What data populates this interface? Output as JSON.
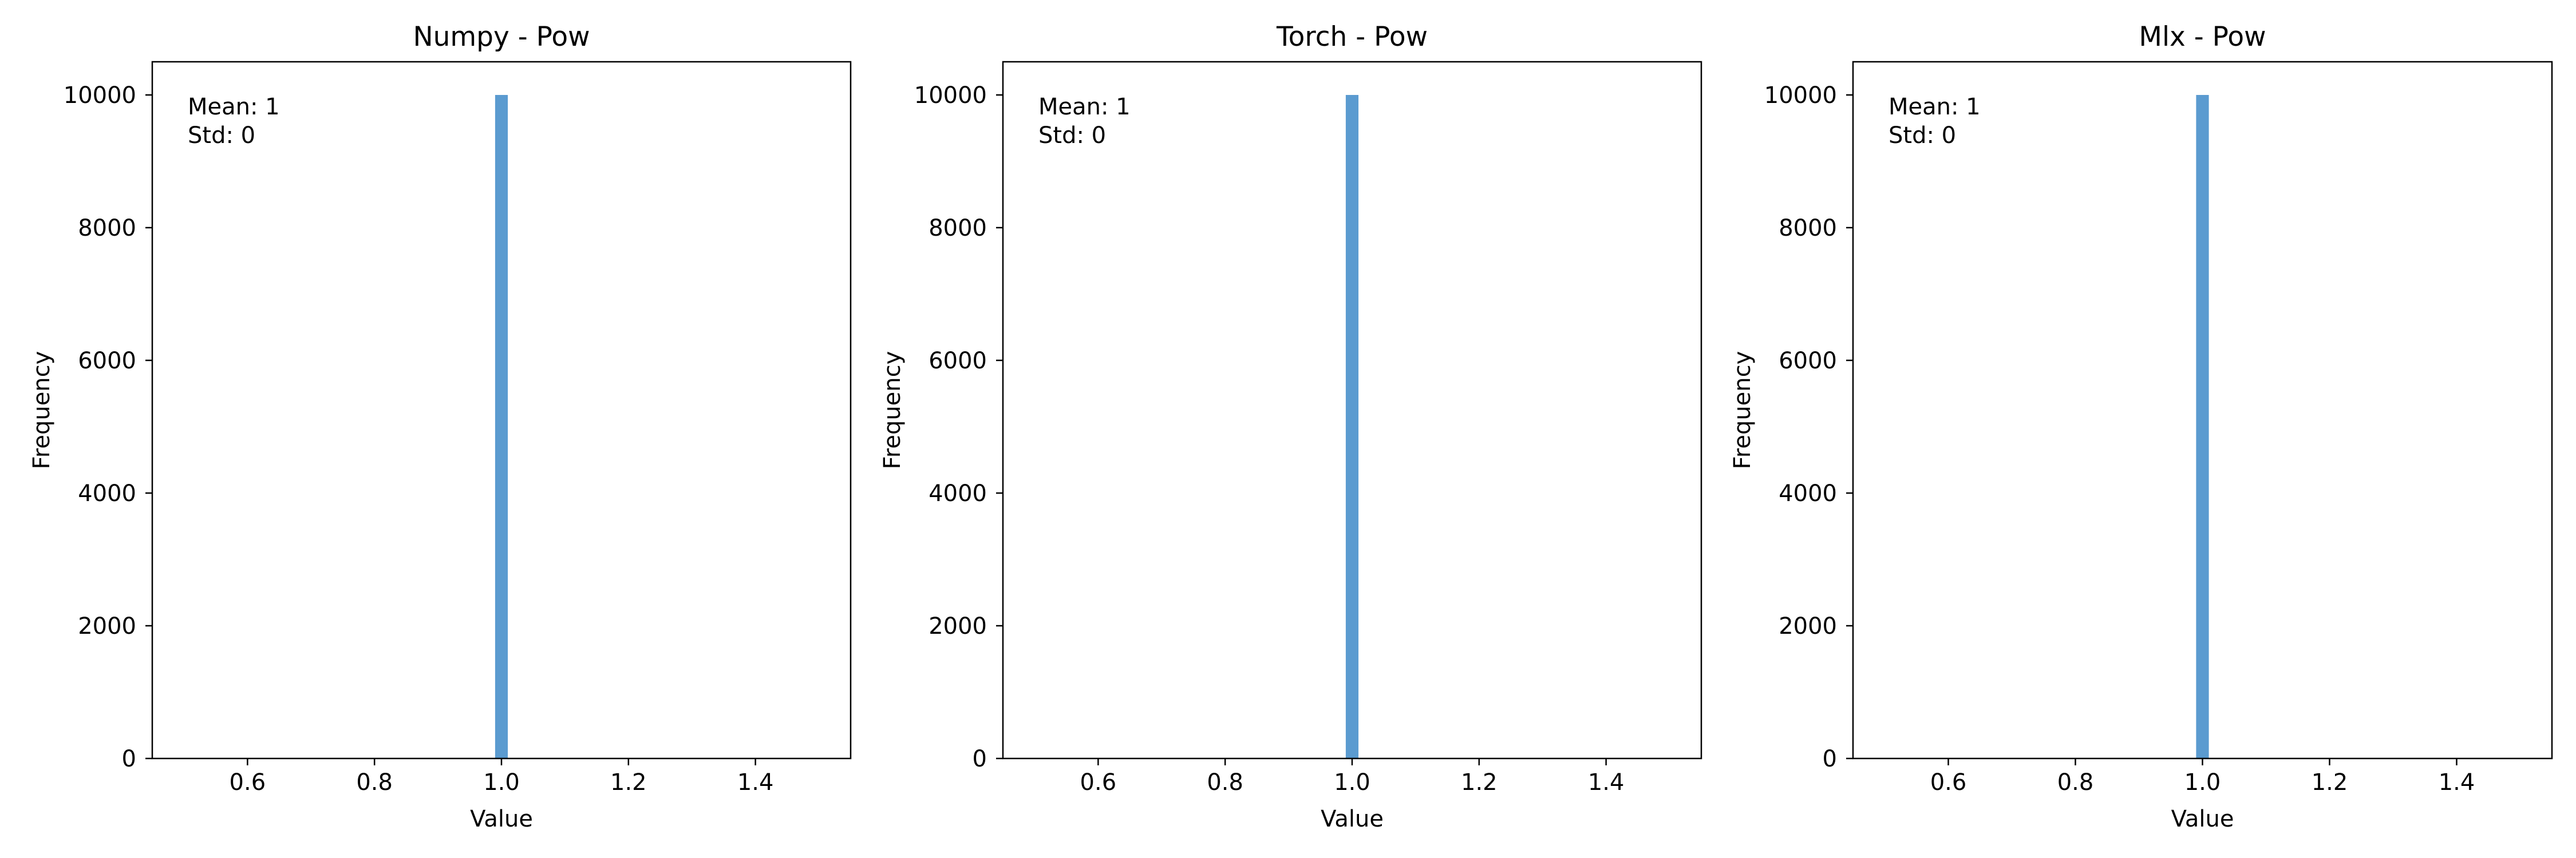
{
  "chart_data": [
    {
      "type": "bar",
      "title": "Numpy - Pow",
      "xlabel": "Value",
      "ylabel": "Frequency",
      "xlim": [
        0.45,
        1.55
      ],
      "ylim": [
        0,
        10500
      ],
      "xticks": [
        "0.6",
        "0.8",
        "1.0",
        "1.2",
        "1.4"
      ],
      "yticks": [
        "0",
        "2000",
        "4000",
        "6000",
        "8000",
        "10000"
      ],
      "bins": [
        {
          "x0": 0.99,
          "x1": 1.01,
          "count": 10000
        }
      ],
      "bar_color": "#5b9bd0",
      "annotation": {
        "mean": "Mean: 1",
        "std": "Std: 0"
      },
      "grid": false,
      "legend": "none"
    },
    {
      "type": "bar",
      "title": "Torch - Pow",
      "xlabel": "Value",
      "ylabel": "Frequency",
      "xlim": [
        0.45,
        1.55
      ],
      "ylim": [
        0,
        10500
      ],
      "xticks": [
        "0.6",
        "0.8",
        "1.0",
        "1.2",
        "1.4"
      ],
      "yticks": [
        "0",
        "2000",
        "4000",
        "6000",
        "8000",
        "10000"
      ],
      "bins": [
        {
          "x0": 0.99,
          "x1": 1.01,
          "count": 10000
        }
      ],
      "bar_color": "#5b9bd0",
      "annotation": {
        "mean": "Mean: 1",
        "std": "Std: 0"
      },
      "grid": false,
      "legend": "none"
    },
    {
      "type": "bar",
      "title": "Mlx - Pow",
      "xlabel": "Value",
      "ylabel": "Frequency",
      "xlim": [
        0.45,
        1.55
      ],
      "ylim": [
        0,
        10500
      ],
      "xticks": [
        "0.6",
        "0.8",
        "1.0",
        "1.2",
        "1.4"
      ],
      "yticks": [
        "0",
        "2000",
        "4000",
        "6000",
        "8000",
        "10000"
      ],
      "bins": [
        {
          "x0": 0.99,
          "x1": 1.01,
          "count": 10000
        }
      ],
      "bar_color": "#5b9bd0",
      "annotation": {
        "mean": "Mean: 1",
        "std": "Std: 0"
      },
      "grid": false,
      "legend": "none"
    }
  ]
}
